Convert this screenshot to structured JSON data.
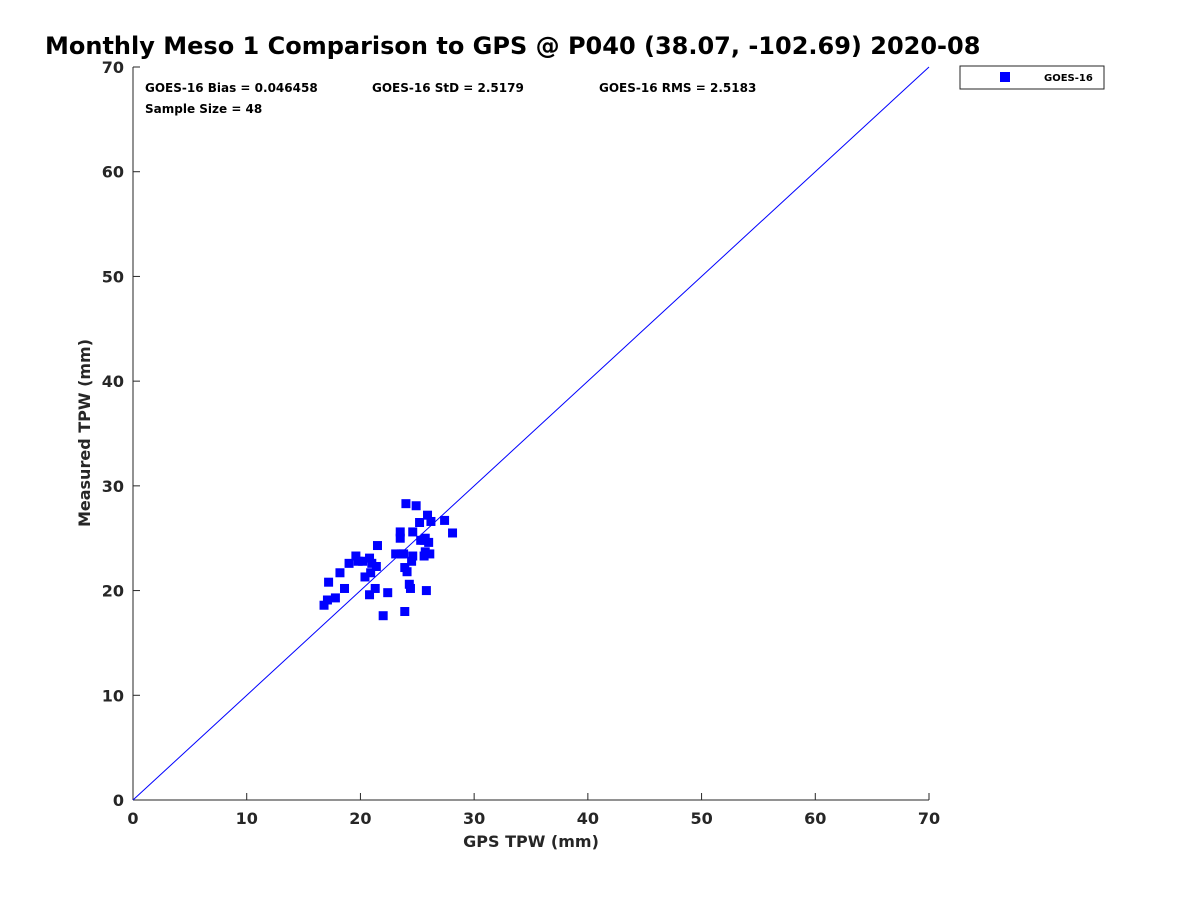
{
  "chart_data": {
    "type": "scatter",
    "title": "Monthly Meso 1 Comparison to GPS @ P040 (38.07, -102.69) 2020-08",
    "xlabel": "GPS TPW (mm)",
    "ylabel": "Measured TPW (mm)",
    "xlim": [
      0,
      70
    ],
    "ylim": [
      0,
      70
    ],
    "xticks": [
      "0",
      "10",
      "20",
      "30",
      "40",
      "50",
      "60",
      "70"
    ],
    "yticks": [
      "0",
      "10",
      "20",
      "30",
      "40",
      "50",
      "60",
      "70"
    ],
    "grid": false,
    "legend_position": "outside-top-right",
    "reference_line": {
      "x": [
        0,
        70
      ],
      "y": [
        0,
        70
      ],
      "color": "#0000ff"
    },
    "stats": {
      "bias": "GOES-16 Bias = 0.046458",
      "std": "GOES-16 StD = 2.5179",
      "rms": "GOES-16 RMS = 2.5183",
      "sample_size": "Sample Size = 48"
    },
    "series": [
      {
        "name": "GOES-16",
        "color": "#0000ff",
        "marker": "square",
        "points": [
          [
            16.8,
            18.6
          ],
          [
            17.1,
            19.1
          ],
          [
            17.2,
            20.8
          ],
          [
            17.8,
            19.3
          ],
          [
            18.2,
            21.7
          ],
          [
            18.6,
            20.2
          ],
          [
            19.0,
            22.6
          ],
          [
            19.6,
            23.3
          ],
          [
            19.8,
            22.8
          ],
          [
            20.2,
            22.8
          ],
          [
            20.4,
            21.3
          ],
          [
            20.8,
            19.6
          ],
          [
            20.8,
            23.1
          ],
          [
            20.9,
            21.7
          ],
          [
            21.0,
            22.6
          ],
          [
            21.3,
            20.2
          ],
          [
            21.4,
            22.3
          ],
          [
            21.5,
            24.3
          ],
          [
            22.0,
            17.6
          ],
          [
            22.4,
            19.8
          ],
          [
            23.1,
            23.5
          ],
          [
            23.5,
            25.0
          ],
          [
            23.5,
            25.6
          ],
          [
            23.6,
            23.5
          ],
          [
            23.8,
            23.5
          ],
          [
            23.9,
            18.0
          ],
          [
            23.9,
            22.2
          ],
          [
            24.0,
            28.3
          ],
          [
            24.1,
            21.8
          ],
          [
            24.3,
            20.6
          ],
          [
            24.4,
            20.2
          ],
          [
            24.5,
            22.8
          ],
          [
            24.6,
            25.6
          ],
          [
            24.6,
            23.3
          ],
          [
            24.9,
            28.1
          ],
          [
            25.2,
            26.5
          ],
          [
            25.3,
            24.8
          ],
          [
            25.6,
            23.3
          ],
          [
            25.6,
            24.8
          ],
          [
            25.7,
            25.0
          ],
          [
            25.7,
            23.7
          ],
          [
            25.8,
            20.0
          ],
          [
            25.9,
            27.2
          ],
          [
            26.0,
            24.6
          ],
          [
            26.1,
            23.5
          ],
          [
            26.2,
            26.6
          ],
          [
            27.4,
            26.7
          ],
          [
            28.1,
            25.5
          ]
        ]
      }
    ]
  }
}
